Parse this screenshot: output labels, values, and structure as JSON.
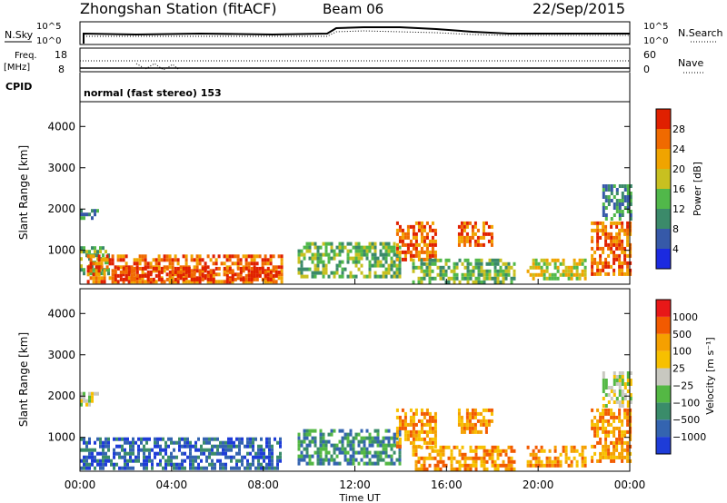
{
  "header": {
    "station": "Zhongshan Station (fitACF)",
    "beam": "Beam 06",
    "date": "22/Sep/2015"
  },
  "top_panels": {
    "nsky_label": "N.Sky",
    "nsky_ticks": [
      "10^5",
      "10^0"
    ],
    "nsearch_label": "N.Search",
    "nsearch_ticks": [
      "10^5",
      "10^0"
    ],
    "freq_label": "Freq.",
    "freq_unit": "[MHz]",
    "freq_ticks": [
      "18",
      "8"
    ],
    "nave_label": "Nave",
    "nave_ticks": [
      "60",
      "0"
    ],
    "cpid_label": "CPID",
    "cpid_value": "normal (fast stereo) 153"
  },
  "colors": {
    "power": [
      "#1b2ae0",
      "#3659a8",
      "#3b8a6a",
      "#51b84a",
      "#c8c020",
      "#f0a400",
      "#f06a00",
      "#e02000"
    ],
    "velocity": [
      "#e81818",
      "#f25a00",
      "#f5a000",
      "#f7c000",
      "#c8c8c0",
      "#54b844",
      "#3a8c6a",
      "#3464b0",
      "#1e3cd8"
    ]
  },
  "chart_data": [
    {
      "type": "heatmap",
      "panel": "power",
      "ylabel": "Slant Range [km]",
      "x_ticks": [
        "00:00",
        "04:00",
        "08:00",
        "12:00",
        "16:00",
        "20:00",
        "00:00"
      ],
      "x_range_hours": [
        0,
        24
      ],
      "y_ticks": [
        "1000",
        "2000",
        "3000",
        "4000"
      ],
      "y_range_km": [
        180,
        4600
      ],
      "colorbar": {
        "label": "Power [dB]",
        "ticks": [
          "4",
          "8",
          "12",
          "16",
          "20",
          "24",
          "28"
        ]
      },
      "echo_regions": [
        {
          "t0": 0.0,
          "t1": 1.2,
          "r0": 400,
          "r1": 1100,
          "level": 3
        },
        {
          "t0": 0.3,
          "t1": 8.8,
          "r0": 250,
          "r1": 900,
          "level": 6
        },
        {
          "t0": 1.5,
          "t1": 8.8,
          "r0": 250,
          "r1": 600,
          "level": 7
        },
        {
          "t0": 0.0,
          "t1": 0.8,
          "r0": 1800,
          "r1": 2000,
          "level": 2
        },
        {
          "t0": 9.5,
          "t1": 14.0,
          "r0": 400,
          "r1": 1200,
          "level": 3
        },
        {
          "t0": 13.8,
          "t1": 15.5,
          "r0": 800,
          "r1": 1700,
          "level": 6
        },
        {
          "t0": 16.5,
          "t1": 18.0,
          "r0": 1100,
          "r1": 1700,
          "level": 6
        },
        {
          "t0": 14.5,
          "t1": 19.0,
          "r0": 250,
          "r1": 800,
          "level": 3
        },
        {
          "t0": 19.5,
          "t1": 22.0,
          "r0": 300,
          "r1": 800,
          "level": 4
        },
        {
          "t0": 22.3,
          "t1": 24.0,
          "r0": 400,
          "r1": 1700,
          "level": 6
        },
        {
          "t0": 22.8,
          "t1": 24.0,
          "r0": 1800,
          "r1": 2600,
          "level": 2
        }
      ]
    },
    {
      "type": "heatmap",
      "panel": "velocity",
      "ylabel": "Slant Range [km]",
      "xlabel": "Time UT",
      "x_ticks": [
        "00:00",
        "04:00",
        "08:00",
        "12:00",
        "16:00",
        "20:00",
        "00:00"
      ],
      "x_range_hours": [
        0,
        24
      ],
      "y_ticks": [
        "1000",
        "2000",
        "3000",
        "4000"
      ],
      "y_range_km": [
        180,
        4600
      ],
      "colorbar": {
        "label": "Velocity [m s⁻¹]",
        "ticks": [
          "1000",
          "500",
          "100",
          "25",
          "−25",
          "−100",
          "−500",
          "−1000"
        ]
      },
      "echo_regions": [
        {
          "t0": 0.0,
          "t1": 8.8,
          "r0": 250,
          "r1": 1000,
          "level": 7
        },
        {
          "t0": 0.0,
          "t1": 0.8,
          "r0": 1800,
          "r1": 2100,
          "level": 4
        },
        {
          "t0": 9.5,
          "t1": 14.0,
          "r0": 400,
          "r1": 1200,
          "level": 6
        },
        {
          "t0": 13.8,
          "t1": 15.5,
          "r0": 800,
          "r1": 1700,
          "level": 2
        },
        {
          "t0": 16.5,
          "t1": 18.0,
          "r0": 1100,
          "r1": 1700,
          "level": 2
        },
        {
          "t0": 14.5,
          "t1": 19.0,
          "r0": 250,
          "r1": 800,
          "level": 2
        },
        {
          "t0": 19.5,
          "t1": 22.0,
          "r0": 300,
          "r1": 800,
          "level": 2
        },
        {
          "t0": 22.3,
          "t1": 24.0,
          "r0": 400,
          "r1": 1700,
          "level": 2
        },
        {
          "t0": 22.8,
          "t1": 24.0,
          "r0": 1800,
          "r1": 2600,
          "level": 4
        }
      ]
    }
  ]
}
